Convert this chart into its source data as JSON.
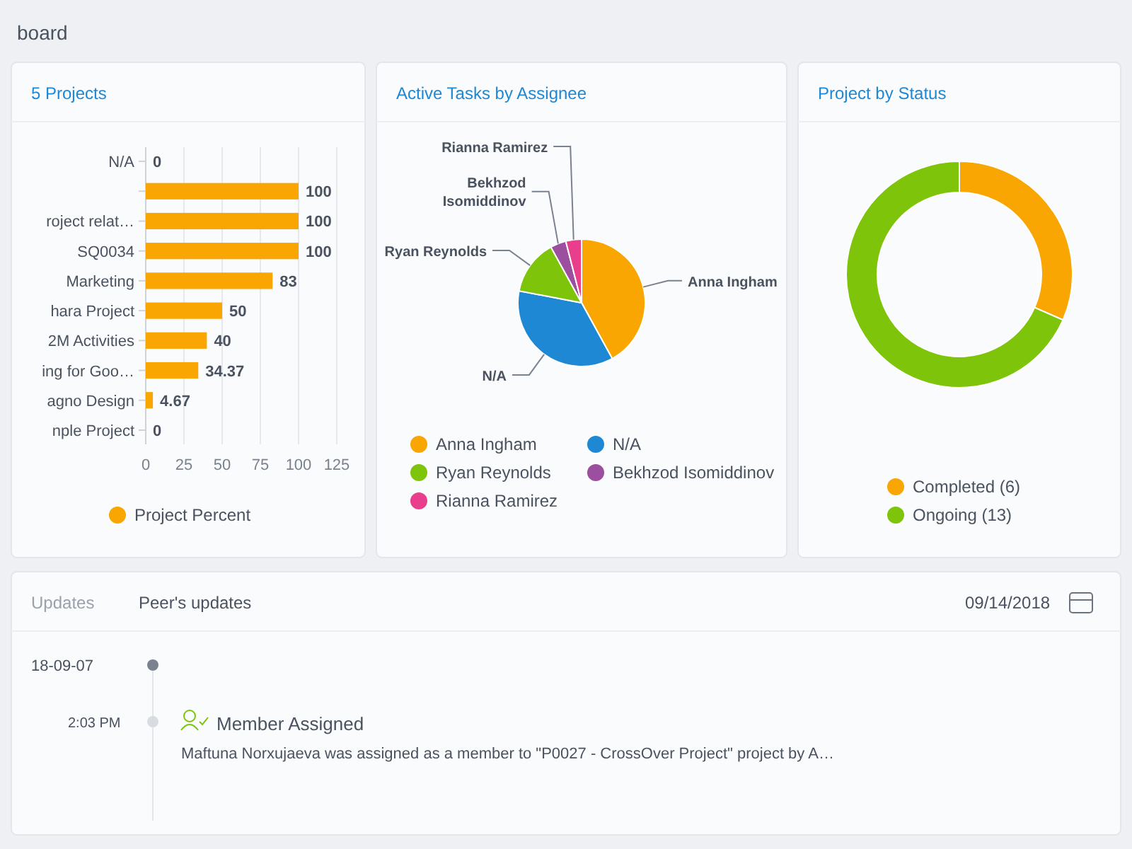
{
  "chart_data": [
    {
      "type": "bar",
      "title": "5 Projects",
      "orientation": "horizontal",
      "categories": [
        "N/A",
        null,
        "roject relat…",
        "SQ0034",
        "Marketing",
        "hara Project",
        "2M Activities",
        "ing for Goo…",
        "agno Design",
        "nple Project"
      ],
      "series": [
        {
          "name": "Project Percent",
          "color": "#f9a602",
          "values": [
            0,
            100,
            100,
            100,
            83,
            50,
            40,
            34.37,
            4.67,
            0
          ]
        }
      ],
      "xlim": [
        0,
        125
      ],
      "xticks": [
        0,
        25,
        50,
        75,
        100,
        125
      ],
      "grid": "x",
      "data_labels": true,
      "legend": "bottom",
      "marker": "circle"
    },
    {
      "type": "pie",
      "title": "Active Tasks by Assignee",
      "categories": [
        "Anna Ingham",
        "N/A",
        "Ryan Reynolds",
        "Bekhzod Isomiddinov",
        "Rianna Ramirez"
      ],
      "values": [
        42,
        36,
        14,
        4,
        4
      ],
      "colors": [
        "#f9a602",
        "#1e88d4",
        "#7ec40a",
        "#9b4f9e",
        "#e83e8c"
      ],
      "legend": "bottom"
    },
    {
      "type": "donut",
      "title": "Project by Status",
      "categories": [
        "Completed (6)",
        "Ongoing (13)"
      ],
      "values": [
        6,
        13
      ],
      "colors": [
        "#f9a602",
        "#7ec40a"
      ],
      "legend": "bottom"
    },
    {
      "type": "other",
      "title": "Peer's updates",
      "annotations": [
        "board",
        "Updates",
        "09/14/2018",
        "18-09-07",
        "2:03 PM",
        "Member Assigned",
        "Maftuna Norxujaeva was assigned as a member to \"P0027 - CrossOver Project\" project by A…"
      ]
    }
  ]
}
